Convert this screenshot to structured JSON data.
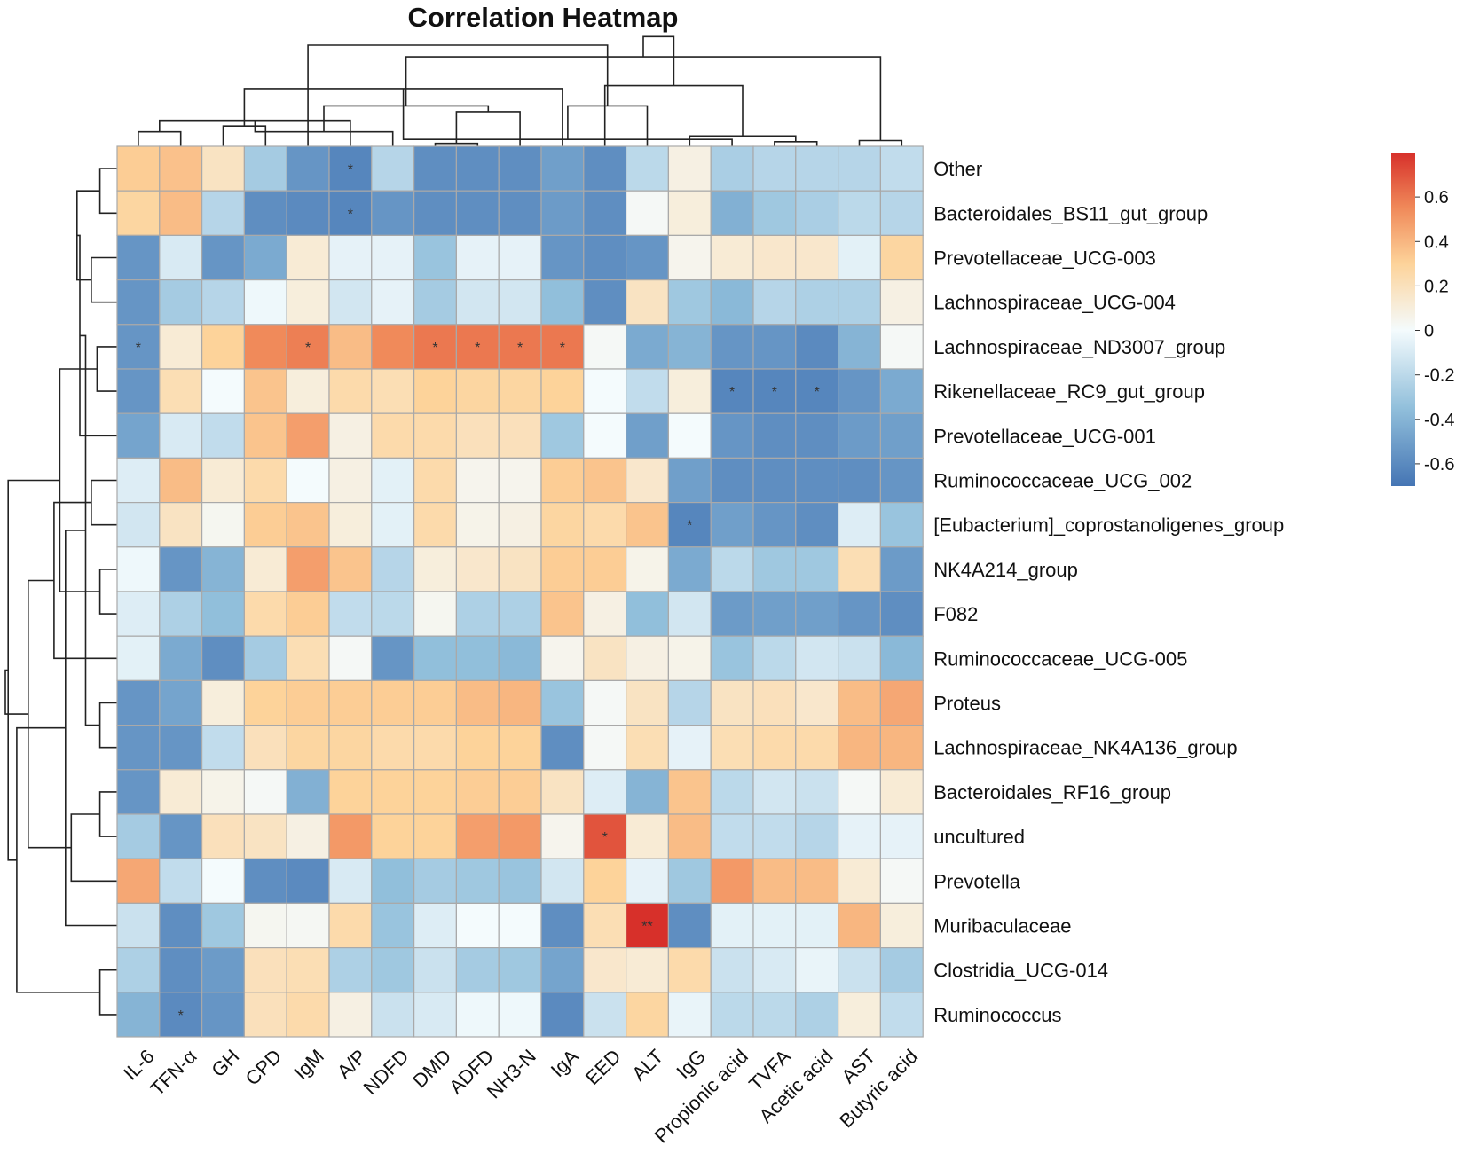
{
  "chart_data": {
    "type": "heatmap",
    "title": "Correlation Heatmap",
    "columns": [
      "IL-6",
      "TFN-α",
      "GH",
      "CPD",
      "IgM",
      "A/P",
      "NDFD",
      "DMD",
      "ADFD",
      "NH3-N",
      "IgA",
      "EED",
      "ALT",
      "IgG",
      "Propionic acid",
      "TVFA",
      "Acetic acid",
      "AST",
      "Butyric acid"
    ],
    "rows": [
      "Other",
      "Bacteroidales_BS11_gut_group",
      "Prevotellaceae_UCG-003",
      "Lachnospiraceae_UCG-004",
      "Lachnospiraceae_ND3007_group",
      "Rikenellaceae_RC9_gut_group",
      "Prevotellaceae_UCG-001",
      "Ruminococcaceae_UCG_002",
      "[Eubacterium]_coprostanoligenes_group",
      "NK4A214_group",
      "F082",
      "Ruminococcaceae_UCG-005",
      "Proteus",
      "Lachnospiraceae_NK4A136_group",
      "Bacteroidales_RF16_group",
      "uncultured",
      "Prevotella",
      "Muribaculaceae",
      "Clostridia_UCG-014",
      "Ruminococcus"
    ],
    "values": [
      [
        0.32,
        0.36,
        0.18,
        -0.28,
        -0.55,
        -0.62,
        -0.22,
        -0.58,
        -0.58,
        -0.58,
        -0.5,
        -0.58,
        -0.2,
        0.08,
        -0.26,
        -0.22,
        -0.22,
        -0.22,
        -0.18
      ],
      [
        0.28,
        0.38,
        -0.22,
        -0.58,
        -0.6,
        -0.62,
        -0.55,
        -0.58,
        -0.58,
        -0.58,
        -0.52,
        -0.58,
        0.02,
        0.1,
        -0.42,
        -0.3,
        -0.26,
        -0.2,
        -0.22
      ],
      [
        -0.55,
        -0.1,
        -0.55,
        -0.45,
        0.12,
        -0.05,
        -0.05,
        -0.32,
        -0.05,
        -0.05,
        -0.55,
        -0.58,
        -0.55,
        0.05,
        0.12,
        0.15,
        0.15,
        -0.06,
        0.28
      ],
      [
        -0.55,
        -0.28,
        -0.22,
        -0.02,
        0.1,
        -0.12,
        -0.05,
        -0.28,
        -0.12,
        -0.12,
        -0.35,
        -0.58,
        0.18,
        -0.3,
        -0.38,
        -0.22,
        -0.25,
        -0.25,
        0.08
      ],
      [
        -0.55,
        0.12,
        0.3,
        0.55,
        0.58,
        0.38,
        0.55,
        0.6,
        0.6,
        0.6,
        0.6,
        0.02,
        -0.45,
        -0.4,
        -0.55,
        -0.55,
        -0.6,
        -0.4,
        0.02
      ],
      [
        -0.55,
        0.22,
        0.0,
        0.35,
        0.1,
        0.25,
        0.22,
        0.3,
        0.28,
        0.28,
        0.3,
        0.0,
        -0.18,
        0.1,
        -0.62,
        -0.62,
        -0.62,
        -0.55,
        -0.45
      ],
      [
        -0.48,
        -0.1,
        -0.18,
        0.35,
        0.48,
        0.08,
        0.25,
        0.25,
        0.2,
        0.2,
        -0.3,
        0.0,
        -0.5,
        0.0,
        -0.55,
        -0.58,
        -0.58,
        -0.52,
        -0.5
      ],
      [
        -0.08,
        0.38,
        0.12,
        0.25,
        0.0,
        0.08,
        -0.06,
        0.25,
        0.05,
        0.05,
        0.32,
        0.35,
        0.15,
        -0.5,
        -0.58,
        -0.58,
        -0.58,
        -0.58,
        -0.55
      ],
      [
        -0.12,
        0.18,
        0.04,
        0.32,
        0.35,
        0.1,
        -0.06,
        0.25,
        0.06,
        0.08,
        0.28,
        0.25,
        0.35,
        -0.62,
        -0.5,
        -0.55,
        -0.58,
        -0.08,
        -0.32
      ],
      [
        -0.02,
        -0.55,
        -0.4,
        0.12,
        0.48,
        0.35,
        -0.22,
        0.1,
        0.15,
        0.18,
        0.32,
        0.32,
        0.06,
        -0.45,
        -0.2,
        -0.3,
        -0.3,
        0.22,
        -0.52
      ],
      [
        -0.08,
        -0.25,
        -0.35,
        0.25,
        0.32,
        -0.18,
        -0.2,
        0.04,
        -0.25,
        -0.25,
        0.35,
        0.08,
        -0.35,
        -0.12,
        -0.52,
        -0.5,
        -0.5,
        -0.55,
        -0.58
      ],
      [
        -0.06,
        -0.45,
        -0.58,
        -0.28,
        0.22,
        0.02,
        -0.55,
        -0.35,
        -0.35,
        -0.38,
        0.05,
        0.18,
        0.08,
        0.06,
        -0.32,
        -0.2,
        -0.12,
        -0.15,
        -0.38
      ],
      [
        -0.55,
        -0.48,
        0.1,
        0.3,
        0.32,
        0.32,
        0.32,
        0.32,
        0.38,
        0.4,
        -0.32,
        0.02,
        0.18,
        -0.22,
        0.18,
        0.2,
        0.15,
        0.38,
        0.45
      ],
      [
        -0.55,
        -0.55,
        -0.18,
        0.2,
        0.28,
        0.28,
        0.25,
        0.25,
        0.3,
        0.3,
        -0.58,
        0.02,
        0.22,
        -0.05,
        0.22,
        0.25,
        0.25,
        0.4,
        0.4
      ],
      [
        -0.55,
        0.12,
        0.06,
        0.02,
        -0.42,
        0.3,
        0.3,
        0.3,
        0.32,
        0.32,
        0.18,
        -0.08,
        -0.4,
        0.35,
        -0.2,
        -0.12,
        -0.15,
        0.02,
        0.12
      ],
      [
        -0.28,
        -0.55,
        0.2,
        0.18,
        0.08,
        0.5,
        0.3,
        0.3,
        0.48,
        0.5,
        0.05,
        0.7,
        0.12,
        0.38,
        -0.18,
        -0.18,
        -0.22,
        -0.05,
        -0.05
      ],
      [
        0.45,
        -0.18,
        0.0,
        -0.58,
        -0.6,
        -0.1,
        -0.35,
        -0.28,
        -0.3,
        -0.32,
        -0.12,
        0.3,
        -0.05,
        -0.3,
        0.5,
        0.38,
        0.38,
        0.12,
        0.02
      ],
      [
        -0.15,
        -0.58,
        -0.3,
        0.04,
        0.03,
        0.25,
        -0.32,
        -0.08,
        0.0,
        0.0,
        -0.58,
        0.22,
        0.8,
        -0.58,
        -0.06,
        -0.06,
        -0.06,
        0.4,
        0.1
      ],
      [
        -0.25,
        -0.58,
        -0.52,
        0.2,
        0.22,
        -0.25,
        -0.3,
        -0.15,
        -0.28,
        -0.3,
        -0.48,
        0.15,
        0.12,
        0.25,
        -0.15,
        -0.1,
        -0.04,
        -0.15,
        -0.28
      ],
      [
        -0.4,
        -0.6,
        -0.55,
        0.2,
        0.25,
        0.08,
        -0.15,
        -0.1,
        -0.02,
        -0.02,
        -0.6,
        -0.15,
        0.28,
        -0.04,
        -0.2,
        -0.2,
        -0.25,
        0.1,
        -0.18
      ]
    ],
    "significance": [
      {
        "row": 0,
        "col": 5,
        "mark": "*"
      },
      {
        "row": 1,
        "col": 5,
        "mark": "*"
      },
      {
        "row": 4,
        "col": 0,
        "mark": "*"
      },
      {
        "row": 4,
        "col": 4,
        "mark": "*"
      },
      {
        "row": 4,
        "col": 7,
        "mark": "*"
      },
      {
        "row": 4,
        "col": 8,
        "mark": "*"
      },
      {
        "row": 4,
        "col": 9,
        "mark": "*"
      },
      {
        "row": 4,
        "col": 10,
        "mark": "*"
      },
      {
        "row": 5,
        "col": 14,
        "mark": "*"
      },
      {
        "row": 5,
        "col": 15,
        "mark": "*"
      },
      {
        "row": 5,
        "col": 16,
        "mark": "*"
      },
      {
        "row": 8,
        "col": 13,
        "mark": "*"
      },
      {
        "row": 15,
        "col": 11,
        "mark": "*"
      },
      {
        "row": 17,
        "col": 12,
        "mark": "**"
      },
      {
        "row": 19,
        "col": 1,
        "mark": "*"
      }
    ],
    "color_scale": {
      "min": -0.7,
      "max": 0.8,
      "stops": [
        {
          "value": -0.7,
          "color": "#4575b4"
        },
        {
          "value": -0.35,
          "color": "#91bfdb"
        },
        {
          "value": 0.0,
          "color": "#f4fbfd"
        },
        {
          "value": 0.3,
          "color": "#fdd39a"
        },
        {
          "value": 0.55,
          "color": "#f08a5a"
        },
        {
          "value": 0.8,
          "color": "#d7302a"
        }
      ]
    },
    "legend": {
      "ticks": [
        0.6,
        0.4,
        0.2,
        0,
        -0.2,
        -0.4,
        -0.6
      ],
      "tick_labels": [
        "0.6",
        "0.4",
        "0.2",
        "0",
        "-0.2",
        "-0.4",
        "-0.6"
      ],
      "placement": "right"
    },
    "col_dendrogram": [
      [
        1,
        2,
        0.25
      ],
      [
        18,
        19,
        0.1
      ],
      [
        6,
        20,
        0.45
      ],
      [
        8,
        9,
        0.05
      ],
      [
        7,
        22,
        0.25
      ],
      [
        23,
        10,
        0.6
      ],
      [
        3,
        4,
        0.35
      ],
      [
        24,
        25,
        0.7
      ],
      [
        26,
        11,
        1.0
      ],
      [
        17,
        16,
        0.08
      ],
      [
        28,
        15,
        0.12
      ],
      [
        29,
        14,
        0.18
      ],
      [
        30,
        13,
        0.7
      ],
      [
        31,
        12,
        1.05
      ],
      [
        21,
        27,
        1.55
      ],
      [
        32,
        5,
        1.75
      ],
      [
        33,
        34,
        1.9
      ]
    ],
    "row_dendrogram": [
      [
        1,
        2,
        0.3
      ],
      [
        5,
        6,
        0.35
      ],
      [
        3,
        4,
        0.45
      ],
      [
        10,
        11,
        0.3
      ],
      [
        21,
        23,
        0.7
      ],
      [
        8,
        9,
        0.45
      ],
      [
        25,
        7,
        0.65
      ],
      [
        13,
        14,
        0.3
      ],
      [
        15,
        16,
        0.3
      ],
      [
        19,
        20,
        0.3
      ],
      [
        22,
        24,
        1.0
      ],
      [
        27,
        28,
        0.55
      ],
      [
        29,
        17,
        0.8
      ],
      [
        26,
        12,
        1.1
      ],
      [
        18,
        32,
        0.9
      ],
      [
        33,
        34,
        1.55
      ],
      [
        30,
        35,
        1.75
      ],
      [
        31,
        37,
        1.9
      ],
      [
        36,
        38,
        1.95
      ]
    ]
  }
}
